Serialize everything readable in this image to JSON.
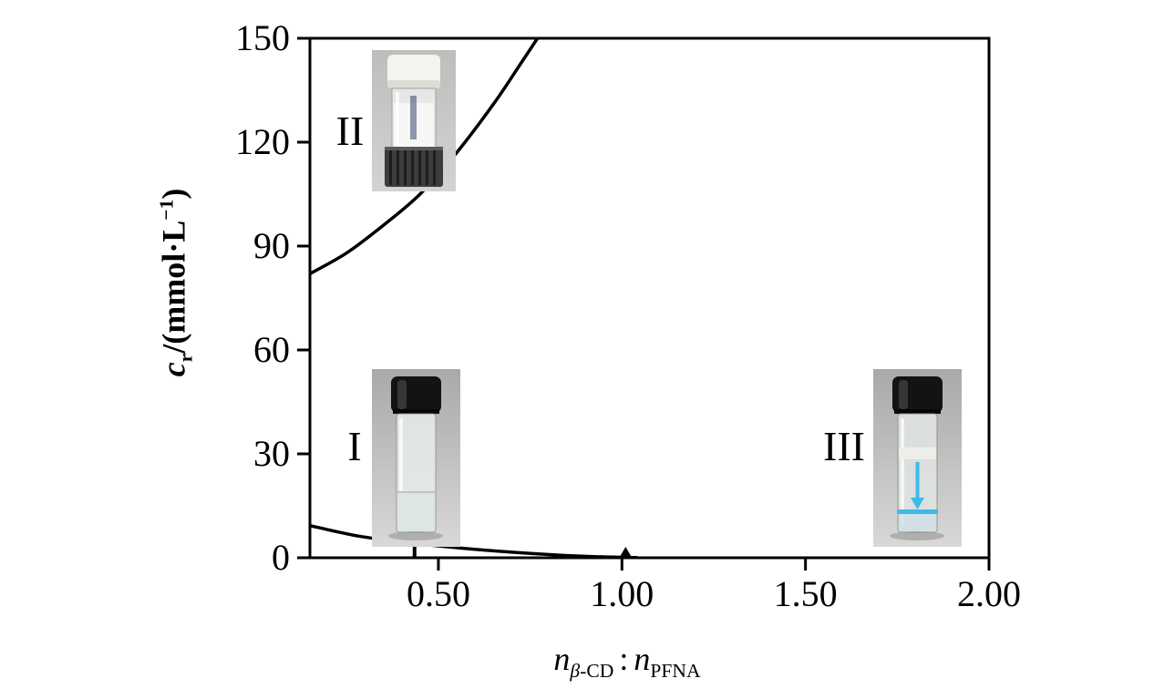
{
  "chart_data": {
    "type": "line",
    "title": "",
    "xlabel": "nβ-CD : nPFNA",
    "ylabel": "cr/(mmol·L−1)",
    "xlim": [
      0.15,
      2.0
    ],
    "ylim": [
      0,
      150
    ],
    "grid": false,
    "legend": "none",
    "x_ticks": [
      {
        "value": 0.5,
        "label": "0.50"
      },
      {
        "value": 1.0,
        "label": "1.00"
      },
      {
        "value": 1.5,
        "label": "1.50"
      },
      {
        "value": 2.0,
        "label": "2.00"
      }
    ],
    "y_ticks": [
      {
        "value": 0,
        "label": "0"
      },
      {
        "value": 30,
        "label": "30"
      },
      {
        "value": 60,
        "label": "60"
      },
      {
        "value": 90,
        "label": "90"
      },
      {
        "value": 120,
        "label": "120"
      },
      {
        "value": 150,
        "label": "150"
      }
    ],
    "series": [
      {
        "name": "upper-phase-boundary",
        "x": [
          0.15,
          0.25,
          0.35,
          0.45,
          0.55,
          0.65,
          0.72,
          0.77
        ],
        "y": [
          82,
          88,
          96,
          105,
          117,
          131,
          142,
          150
        ]
      },
      {
        "name": "lower-phase-boundary",
        "x": [
          0.15,
          0.28,
          0.42,
          0.56,
          0.7,
          0.84,
          0.95,
          1.04
        ],
        "y": [
          9.3,
          6.3,
          4.3,
          2.8,
          1.6,
          0.7,
          0.25,
          0.05
        ]
      }
    ],
    "end_marker": {
      "x": 1.01,
      "y": 0
    },
    "annotations": {
      "region_I": "I",
      "region_II": "II",
      "region_III": "III",
      "black_arrow": {
        "x": 0.435,
        "y_from": 0.3,
        "y_to": 12,
        "direction": "up"
      },
      "blue_arrow": {
        "direction": "down",
        "location": "inside region III vial photo"
      }
    }
  },
  "axis_labels": {
    "y": {
      "var": "c",
      "sub": "r",
      "mid": "/(mmol·L",
      "sup": "−1",
      "end": ")"
    },
    "x": {
      "var1": "n",
      "sub1_italic": "β",
      "sub1_rest": "-CD",
      "sep": ":",
      "var2": "n",
      "sub2": "PFNA"
    }
  },
  "colors": {
    "curve": "#000000",
    "accent_blue": "#3fb9e9",
    "background": "#ffffff"
  }
}
